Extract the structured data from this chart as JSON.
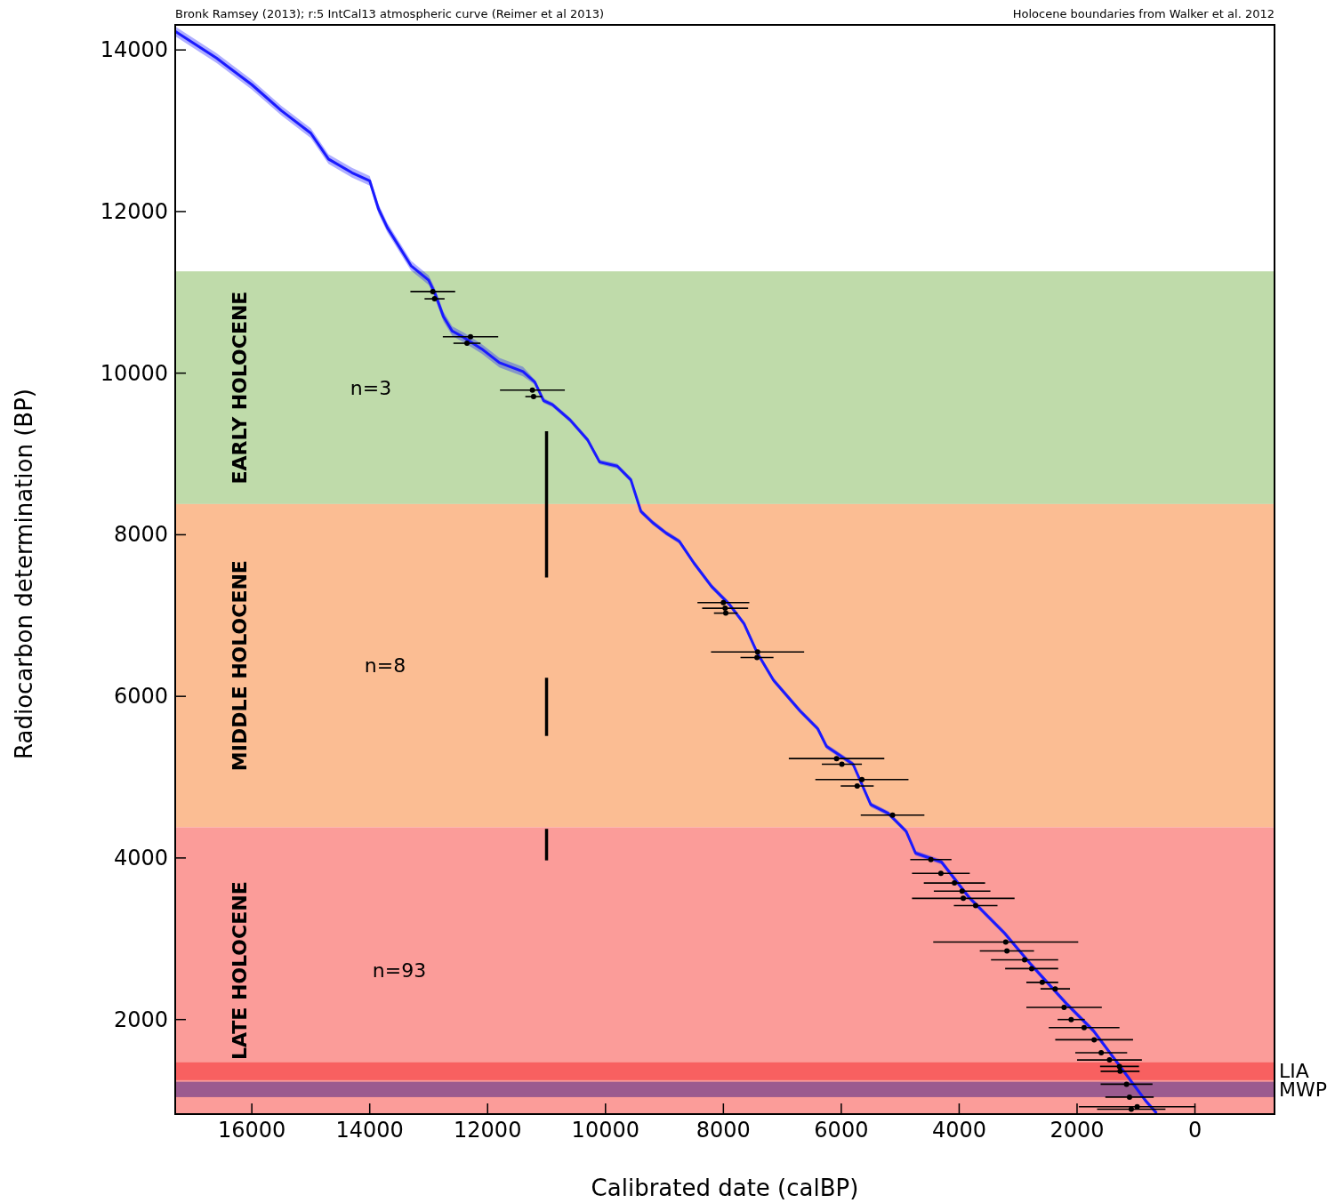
{
  "chart_data": {
    "type": "line",
    "xlabel": "Calibrated date (calBP)",
    "ylabel": "Radiocarbon determination (BP)",
    "xlim": [
      17300,
      -1350
    ],
    "ylim": [
      830,
      14310
    ],
    "xticks": [
      16000,
      14000,
      12000,
      10000,
      8000,
      6000,
      4000,
      2000,
      0
    ],
    "yticks": [
      2000,
      4000,
      6000,
      8000,
      10000,
      12000,
      14000
    ],
    "grid": false,
    "bands": [
      {
        "axis": "y",
        "from": 8380,
        "to": 11260,
        "label": "EARLY HOLOCENE",
        "color": "#bfdbaa"
      },
      {
        "axis": "y",
        "from": 4380,
        "to": 8380,
        "label": "MIDDLE HOLOCENE",
        "color": "#fbbd93"
      },
      {
        "axis": "y",
        "from": 830,
        "to": 4380,
        "label": "LATE HOLOCENE",
        "color": "#fb9c99"
      },
      {
        "axis": "y",
        "from": 1250,
        "to": 1470,
        "label": "LIA",
        "color": "#f86060"
      },
      {
        "axis": "y",
        "from": 1040,
        "to": 1230,
        "label": "MWP",
        "color": "#9b5b8f"
      }
    ],
    "annotations": [
      "Bronk Ramsey (2013); r:5 IntCal13 atmospheric curve (Reimer et al 2013)",
      "Holocene boundaries from Walker et al. 2012",
      "n=3",
      "n=8",
      "n=93"
    ],
    "series": [
      {
        "color": "#1a1aff",
        "marker": "none",
        "line_style": "solid",
        "x": [
          17300,
          16600,
          16000,
          15500,
          15000,
          14700,
          14300,
          14000,
          13850,
          13700,
          13300,
          13000,
          12900,
          12750,
          12600,
          12400,
          12100,
          11800,
          11400,
          11200,
          11050,
          10900,
          10600,
          10300,
          10100,
          9800,
          9570,
          9400,
          9200,
          8970,
          8750,
          8500,
          8200,
          7900,
          7650,
          7420,
          7150,
          6700,
          6400,
          6250,
          5800,
          5500,
          5200,
          4900,
          4740,
          4300,
          3830,
          3530,
          3230,
          2780,
          2170,
          1720,
          1270,
          820,
          650
        ],
        "values": [
          14230,
          13900,
          13570,
          13250,
          12970,
          12650,
          12480,
          12380,
          12030,
          11800,
          11330,
          11150,
          11000,
          10700,
          10520,
          10440,
          10300,
          10130,
          10020,
          9890,
          9660,
          9610,
          9420,
          9170,
          8900,
          8850,
          8680,
          8290,
          8150,
          8020,
          7920,
          7650,
          7360,
          7140,
          6900,
          6530,
          6200,
          5820,
          5600,
          5380,
          5160,
          4660,
          4550,
          4330,
          4060,
          3950,
          3510,
          3290,
          3070,
          2680,
          2190,
          1860,
          1420,
          980,
          840
        ],
        "lower": [
          14170,
          13840,
          13510,
          13190,
          12910,
          12590,
          12420,
          12320,
          11970,
          11740,
          11270,
          11090,
          10940,
          10640,
          10460,
          10380,
          10240,
          10070,
          9960,
          9860,
          9630,
          9580,
          9390,
          9140,
          8870,
          8820,
          8650,
          8260,
          8120,
          7990,
          7890,
          7620,
          7330,
          7110,
          6870,
          6500,
          6170,
          5790,
          5570,
          5350,
          5130,
          4630,
          4520,
          4300,
          4030,
          3920,
          3480,
          3260,
          3040,
          2650,
          2160,
          1830,
          1390,
          950,
          840
        ],
        "upper": [
          14290,
          13960,
          13630,
          13310,
          13030,
          12710,
          12540,
          12440,
          12090,
          11860,
          11390,
          11210,
          11060,
          10760,
          10580,
          10500,
          10360,
          10190,
          10080,
          9920,
          9690,
          9640,
          9450,
          9200,
          8930,
          8880,
          8710,
          8320,
          8180,
          8050,
          7950,
          7680,
          7390,
          7170,
          6930,
          6560,
          6230,
          5850,
          5630,
          5410,
          5190,
          4690,
          4580,
          4360,
          4090,
          3980,
          3540,
          3320,
          3100,
          2710,
          2220,
          1890,
          1450,
          1010,
          870
        ]
      },
      {
        "type": "scatter",
        "color": "#000000",
        "marker": "circle",
        "x": [
          12930,
          12900,
          12290,
          12350,
          11240,
          11220,
          8000,
          7970,
          7960,
          7420,
          7430,
          6080,
          5990,
          5650,
          5730,
          5130,
          4480,
          4310,
          4080,
          3950,
          3930,
          3720,
          3210,
          3190,
          2890,
          2770,
          2590,
          2370,
          2220,
          2100,
          1880,
          1710,
          1590,
          1450,
          1280,
          1270,
          1160,
          1110,
          980,
          1080
        ],
        "values": [
          11010,
          10920,
          10450,
          10370,
          9790,
          9710,
          7160,
          7090,
          7030,
          6550,
          6480,
          5230,
          5160,
          4970,
          4890,
          4530,
          3980,
          3810,
          3690,
          3590,
          3500,
          3410,
          2960,
          2850,
          2740,
          2630,
          2460,
          2380,
          2150,
          2000,
          1900,
          1750,
          1590,
          1500,
          1420,
          1360,
          1200,
          1040,
          920,
          890
        ],
        "xerrors": [
          380,
          170,
          470,
          230,
          550,
          140,
          440,
          390,
          200,
          790,
          280,
          810,
          340,
          790,
          280,
          540,
          350,
          490,
          520,
          480,
          870,
          370,
          1230,
          460,
          570,
          450,
          270,
          250,
          640,
          230,
          600,
          660,
          440,
          550,
          330,
          330,
          440,
          410,
          990,
          580
        ]
      },
      {
        "type": "line",
        "color": "#000000",
        "marker": "none",
        "line_style": "solid",
        "x": [
          11000,
          11000
        ],
        "values": [
          9280,
          7470
        ]
      },
      {
        "type": "line",
        "color": "#000000",
        "marker": "none",
        "line_style": "solid",
        "x": [
          11000,
          11000
        ],
        "values": [
          6230,
          5510
        ]
      },
      {
        "type": "line",
        "color": "#000000",
        "marker": "none",
        "line_style": "solid",
        "x": [
          11000,
          11000
        ],
        "values": [
          4360,
          3970
        ]
      }
    ]
  }
}
